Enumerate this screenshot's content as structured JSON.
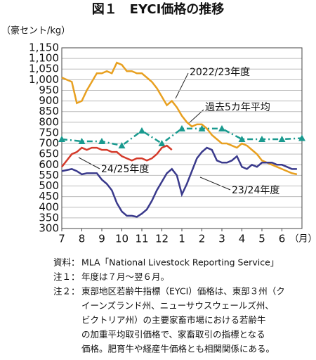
{
  "chart_data": {
    "type": "line",
    "title": "図１　EYCI価格の推移",
    "y_label": "（豪セント/kg）",
    "x_unit": "（月）",
    "xlim": [
      0,
      12
    ],
    "xticks": [
      {
        "value": 0,
        "label": "7"
      },
      {
        "value": 1,
        "label": "8"
      },
      {
        "value": 2,
        "label": "9"
      },
      {
        "value": 3,
        "label": "10"
      },
      {
        "value": 4,
        "label": "11"
      },
      {
        "value": 5,
        "label": "12"
      },
      {
        "value": 6,
        "label": "1"
      },
      {
        "value": 7,
        "label": "2"
      },
      {
        "value": 8,
        "label": "3"
      },
      {
        "value": 9,
        "label": "4"
      },
      {
        "value": 10,
        "label": "5"
      },
      {
        "value": 11,
        "label": "6"
      }
    ],
    "ylim": [
      300,
      1150
    ],
    "yticks": [
      300,
      350,
      400,
      450,
      500,
      550,
      600,
      650,
      700,
      750,
      800,
      850,
      900,
      950,
      {
        "value": 1000,
        "label": "1,000"
      },
      {
        "value": 1050,
        "label": "1,050"
      },
      {
        "value": 1100,
        "label": "1,100"
      },
      {
        "value": 1150,
        "label": "1,150"
      }
    ],
    "grid": true,
    "series": [
      {
        "name": "2022/23年度",
        "color": "#e8a020",
        "linestyle": "solid",
        "x": [
          0,
          0.25,
          0.5,
          0.75,
          1,
          1.25,
          1.5,
          1.75,
          2,
          2.25,
          2.5,
          2.75,
          3,
          3.25,
          3.5,
          3.75,
          4,
          4.25,
          4.5,
          4.75,
          5,
          5.25,
          5.5,
          5.75,
          6,
          6.25,
          6.5,
          6.75,
          7,
          7.25,
          7.5,
          7.75,
          8,
          8.25,
          8.5,
          8.75,
          9,
          9.25,
          9.5,
          9.75,
          10,
          10.25,
          10.5,
          10.75,
          11,
          11.25,
          11.5,
          11.75
        ],
        "values": [
          1010,
          1000,
          990,
          890,
          900,
          950,
          990,
          1030,
          1030,
          1040,
          1030,
          1080,
          1070,
          1040,
          1040,
          1030,
          1030,
          1010,
          990,
          960,
          920,
          880,
          900,
          870,
          830,
          800,
          780,
          790,
          790,
          770,
          740,
          720,
          700,
          700,
          690,
          680,
          700,
          690,
          670,
          650,
          620,
          610,
          600,
          590,
          580,
          570,
          560,
          555
        ]
      },
      {
        "name": "過去5カ年平均",
        "color": "#1a9a8f",
        "linestyle": "dashdot",
        "marker": "triangle",
        "x": [
          0,
          1,
          2,
          3,
          4,
          5,
          6,
          7,
          8,
          9,
          10,
          11,
          12
        ],
        "values": [
          720,
          710,
          710,
          690,
          760,
          700,
          770,
          770,
          770,
          720,
          720,
          720,
          725
        ]
      },
      {
        "name": "24/25年度",
        "color": "#d43a2a",
        "linestyle": "solid",
        "x": [
          0,
          0.25,
          0.5,
          0.75,
          1,
          1.25,
          1.5,
          1.75,
          2,
          2.25,
          2.5,
          2.75,
          3,
          3.25,
          3.5,
          3.75,
          4,
          4.25,
          4.5,
          4.75,
          5,
          5.25,
          5.5
        ],
        "values": [
          590,
          620,
          650,
          660,
          680,
          670,
          680,
          680,
          670,
          670,
          660,
          660,
          640,
          630,
          620,
          630,
          630,
          620,
          630,
          650,
          680,
          690,
          670
        ]
      },
      {
        "name": "23/24年度",
        "color": "#3a3a8c",
        "linestyle": "solid",
        "x": [
          0,
          0.25,
          0.5,
          0.75,
          1,
          1.25,
          1.5,
          1.75,
          2,
          2.25,
          2.5,
          2.75,
          3,
          3.25,
          3.5,
          3.75,
          4,
          4.25,
          4.5,
          4.75,
          5,
          5.25,
          5.5,
          5.75,
          6,
          6.25,
          6.5,
          6.75,
          7,
          7.25,
          7.5,
          7.75,
          8,
          8.25,
          8.5,
          8.75,
          9,
          9.25,
          9.5,
          9.75,
          10,
          10.25,
          10.5,
          10.75,
          11,
          11.25,
          11.5,
          11.75
        ],
        "values": [
          570,
          575,
          580,
          570,
          555,
          560,
          560,
          560,
          530,
          510,
          480,
          420,
          380,
          360,
          360,
          355,
          370,
          390,
          430,
          480,
          520,
          560,
          580,
          550,
          460,
          510,
          570,
          630,
          660,
          680,
          670,
          620,
          610,
          610,
          620,
          640,
          590,
          580,
          600,
          590,
          610,
          610,
          610,
          600,
          600,
          590,
          580,
          580
        ]
      }
    ],
    "notes": [
      {
        "label": "資料：",
        "lines": [
          "MLA「National Livestock Reporting Service」"
        ]
      },
      {
        "label": "注１：",
        "lines": [
          "年度は７月～翌６月。"
        ]
      },
      {
        "label": "注２：",
        "lines": [
          "東部地区若齢牛指標（EYCI）価格は、東部３州（ク",
          "イーンズランド州、ニューサウスウェールズ州、",
          "ビクトリア州）の主要家畜市場における若齢牛",
          "の加重平均取引価格で、家畜取引の指標となる",
          "価格。肥育牛や経産牛価格とも相関関係にある。"
        ]
      }
    ]
  }
}
